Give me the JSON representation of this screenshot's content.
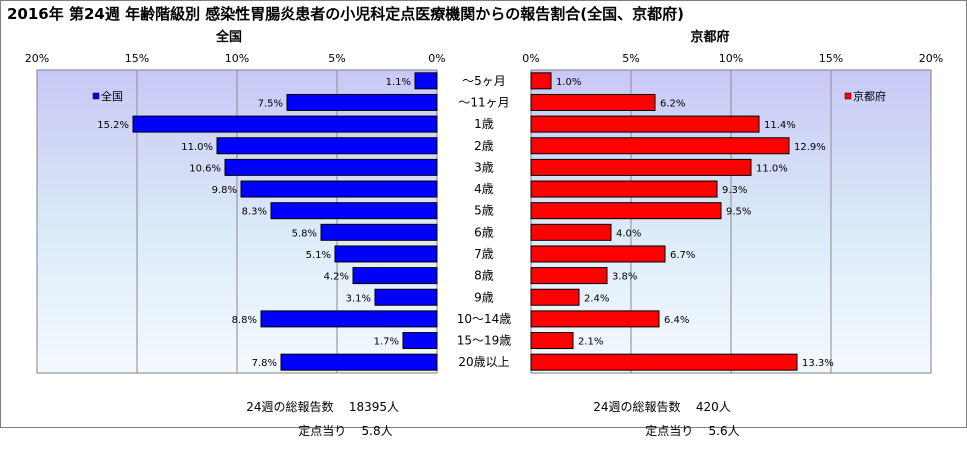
{
  "chart_data": {
    "type": "bar",
    "title": "2016年 第24週 年齢階級別 感染性胃腸炎患者の小児科定点医療機関からの報告割合(全国、京都府)",
    "categories": [
      "～5ヶ月",
      "～11ヶ月",
      "1歳",
      "2歳",
      "3歳",
      "4歳",
      "5歳",
      "6歳",
      "7歳",
      "8歳",
      "9歳",
      "10～14歳",
      "15～19歳",
      "20歳以上"
    ],
    "panels": [
      {
        "title": "全国",
        "direction": "right-to-left",
        "xlim": [
          0,
          20
        ],
        "ticks": [
          "20%",
          "15%",
          "10%",
          "5%",
          "0%"
        ],
        "tick_values": [
          20,
          15,
          10,
          5,
          0
        ],
        "series": [
          {
            "name": "全国",
            "color": "#0000ff",
            "values": [
              1.1,
              7.5,
              15.2,
              11.0,
              10.6,
              9.8,
              8.3,
              5.8,
              5.1,
              4.2,
              3.1,
              8.8,
              1.7,
              7.8
            ],
            "labels": [
              "1.1%",
              "7.5%",
              "15.2%",
              "11.0%",
              "10.6%",
              "9.8%",
              "8.3%",
              "5.8%",
              "5.1%",
              "4.2%",
              "3.1%",
              "8.8%",
              "1.7%",
              "7.8%"
            ]
          }
        ],
        "legend": "top-left"
      },
      {
        "title": "京都府",
        "direction": "left-to-right",
        "xlim": [
          0,
          20
        ],
        "ticks": [
          "0%",
          "5%",
          "10%",
          "15%",
          "20%"
        ],
        "tick_values": [
          0,
          5,
          10,
          15,
          20
        ],
        "series": [
          {
            "name": "京都府",
            "color": "#ff0000",
            "values": [
              1.0,
              6.2,
              11.4,
              12.9,
              11.0,
              9.3,
              9.5,
              4.0,
              6.7,
              3.8,
              2.4,
              6.4,
              2.1,
              13.3
            ],
            "labels": [
              "1.0%",
              "6.2%",
              "11.4%",
              "12.9%",
              "11.0%",
              "9.3%",
              "9.5%",
              "4.0%",
              "6.7%",
              "3.8%",
              "2.4%",
              "6.4%",
              "2.1%",
              "13.3%"
            ]
          }
        ],
        "legend": "top-right"
      }
    ],
    "grid": true,
    "plot_background": "#ccccff"
  },
  "footer": {
    "national": {
      "total_label": "24週の総報告数",
      "total_value": "18395人",
      "per_label": "定点当り",
      "per_value": "5.8人"
    },
    "kyoto": {
      "total_label": "24週の総報告数",
      "total_value": "420人",
      "per_label": "定点当り",
      "per_value": "5.6人"
    }
  }
}
